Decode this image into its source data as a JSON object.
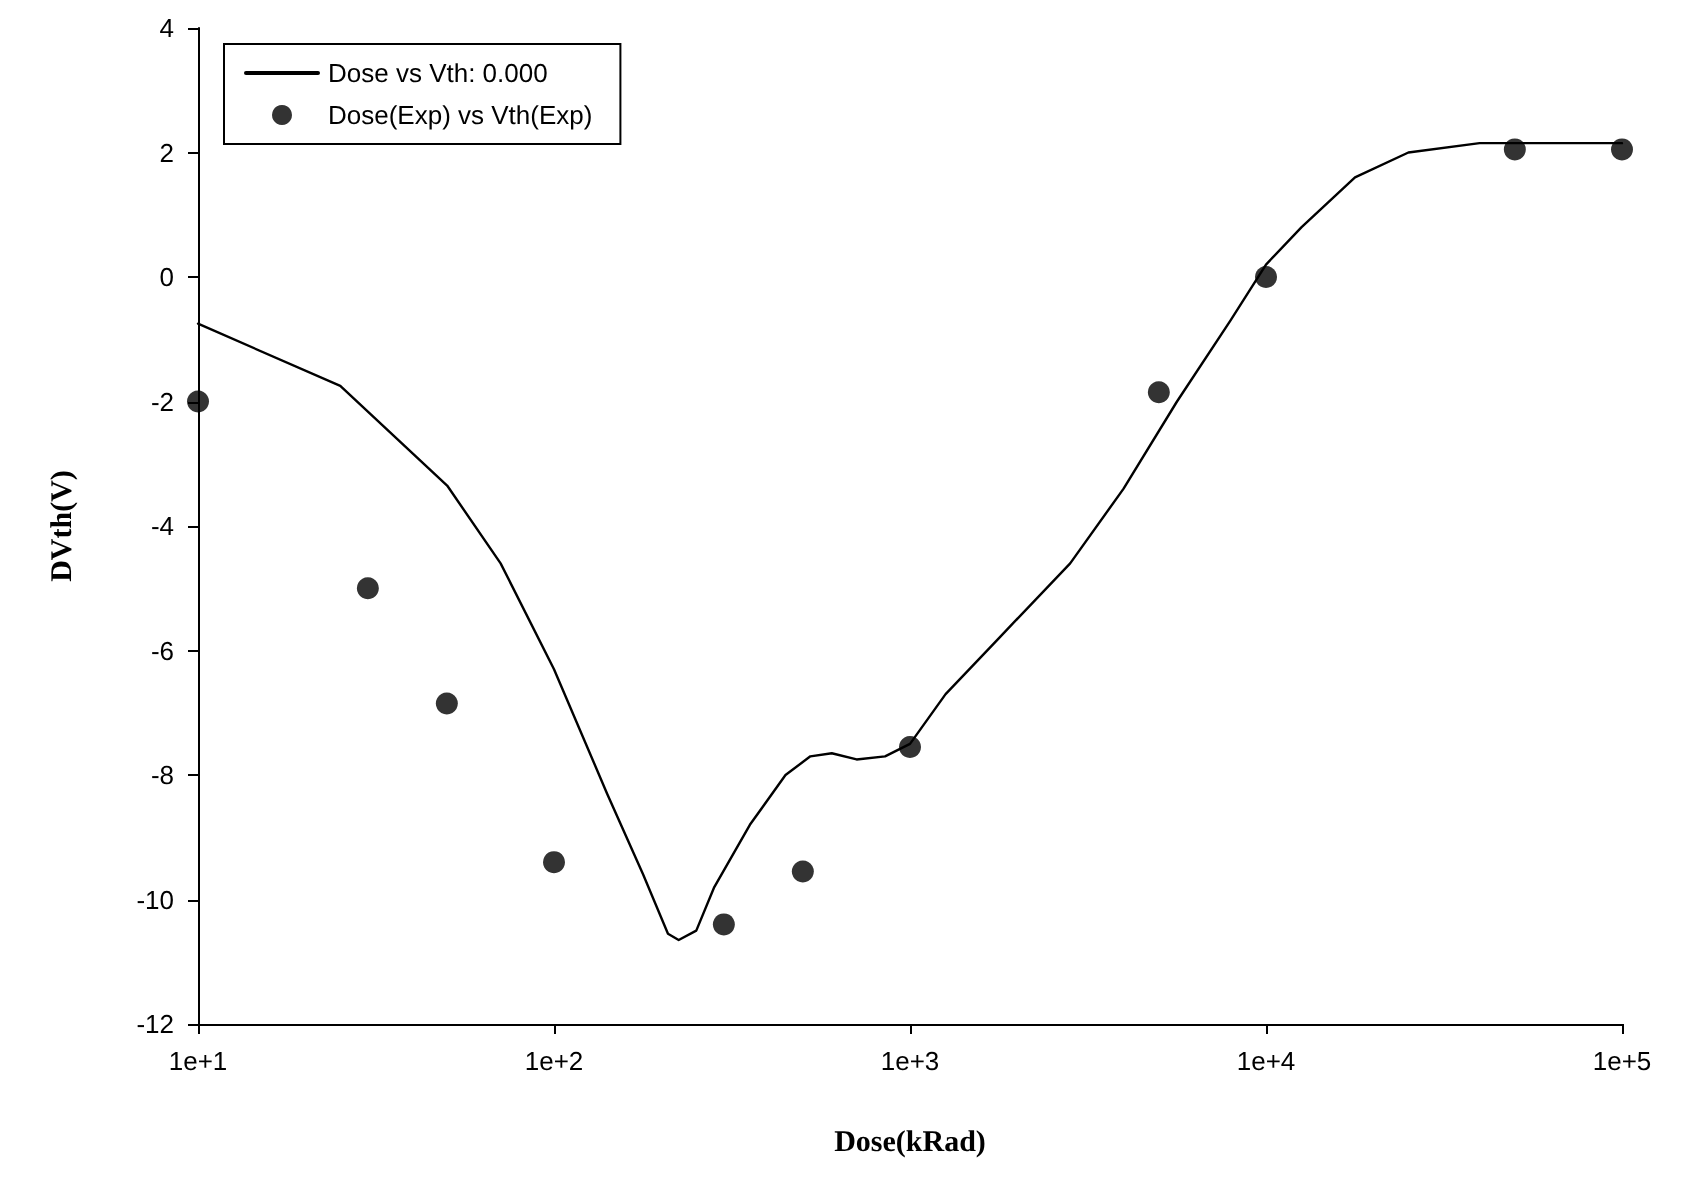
{
  "chart_data": {
    "type": "line",
    "xlabel": "Dose(kRad)",
    "ylabel": "DVth(V)",
    "log": "x",
    "xlim": [
      10,
      100000
    ],
    "xticks": [
      {
        "value": 10,
        "label": "1e+1"
      },
      {
        "value": 100,
        "label": "1e+2"
      },
      {
        "value": 1000,
        "label": "1e+3"
      },
      {
        "value": 10000,
        "label": "1e+4"
      },
      {
        "value": 100000,
        "label": "1e+5"
      }
    ],
    "ylim": [
      -12,
      4
    ],
    "yticks": [
      -12,
      -10,
      -8,
      -6,
      -4,
      -2,
      0,
      2,
      4
    ],
    "grid": false,
    "legend": "top left",
    "series": [
      {
        "name": "Dose vs Vth: 0.000",
        "color": "#000000",
        "marker": "none",
        "line_style": "solid",
        "x": [
          10,
          25.1,
          50.1,
          70.8,
          100,
          141,
          178,
          209,
          224,
          251,
          282,
          355,
          447,
          525,
          603,
          708,
          851,
          1000,
          1259,
          1778,
          2818,
          3981,
          5623,
          7943,
          10000,
          12589,
          17783,
          25119,
          39811,
          100000
        ],
        "values": [
          -0.75,
          -1.75,
          -3.35,
          -4.6,
          -6.3,
          -8.3,
          -9.6,
          -10.55,
          -10.65,
          -10.5,
          -9.8,
          -8.8,
          -8.0,
          -7.7,
          -7.65,
          -7.75,
          -7.7,
          -7.5,
          -6.7,
          -5.8,
          -4.6,
          -3.4,
          -2.0,
          -0.7,
          0.2,
          0.8,
          1.6,
          2.0,
          2.15,
          2.15
        ]
      },
      {
        "name": "Dose(Exp) vs Vth(Exp)",
        "type": "scatter",
        "color": "#000000",
        "marker": "circle",
        "x": [
          10,
          30,
          50,
          100,
          300,
          500,
          1000,
          5000,
          10000,
          50000,
          100000
        ],
        "values": [
          -2,
          -5,
          -6.85,
          -9.4,
          -10.4,
          -9.55,
          -7.55,
          -1.85,
          0,
          2.05,
          2.05
        ]
      }
    ]
  }
}
